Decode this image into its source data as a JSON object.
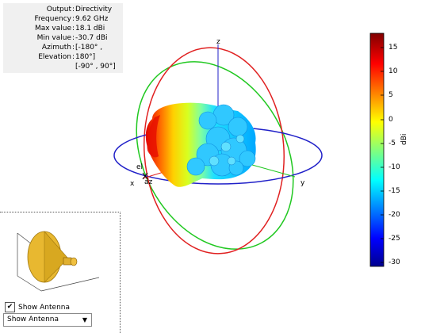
{
  "info_panel": {
    "rows": [
      {
        "label": "Output",
        "value": "Directivity"
      },
      {
        "label": "Frequency",
        "value": "9.62 GHz"
      },
      {
        "label": "Max value",
        "value": "18.1 dBi"
      },
      {
        "label": "Min value",
        "value": "-30.7 dBi"
      },
      {
        "label": "Azimuth",
        "value": "[-180° ,"
      },
      {
        "label": "Elevation",
        "value": "180°]"
      }
    ],
    "extra": "[-90° , 90°]",
    "separator": ":"
  },
  "axes": {
    "x": "x",
    "y": "y",
    "z": "z",
    "el": "el",
    "az": "az"
  },
  "colorbar": {
    "unit": "dBi",
    "ticks": [
      "15",
      "10",
      "5",
      "0",
      "-5",
      "-10",
      "-15",
      "-20",
      "-25",
      "-30"
    ],
    "range": [
      -30.7,
      18.1
    ],
    "colors": [
      "#00008f",
      "#0000ff",
      "#00ffff",
      "#ffff00",
      "#ff0000",
      "#800000"
    ]
  },
  "scene_colors": {
    "azimuth_ring": "#2020c8",
    "elevation_ring_xz": "#e02020",
    "elevation_ring_yz": "#20c820"
  },
  "antenna_preview": {
    "icon": "horn-antenna-icon"
  },
  "show_antenna_checkbox": {
    "label": "Show Antenna",
    "checked": true
  },
  "view_dropdown": {
    "selected": "Show Antenna"
  }
}
